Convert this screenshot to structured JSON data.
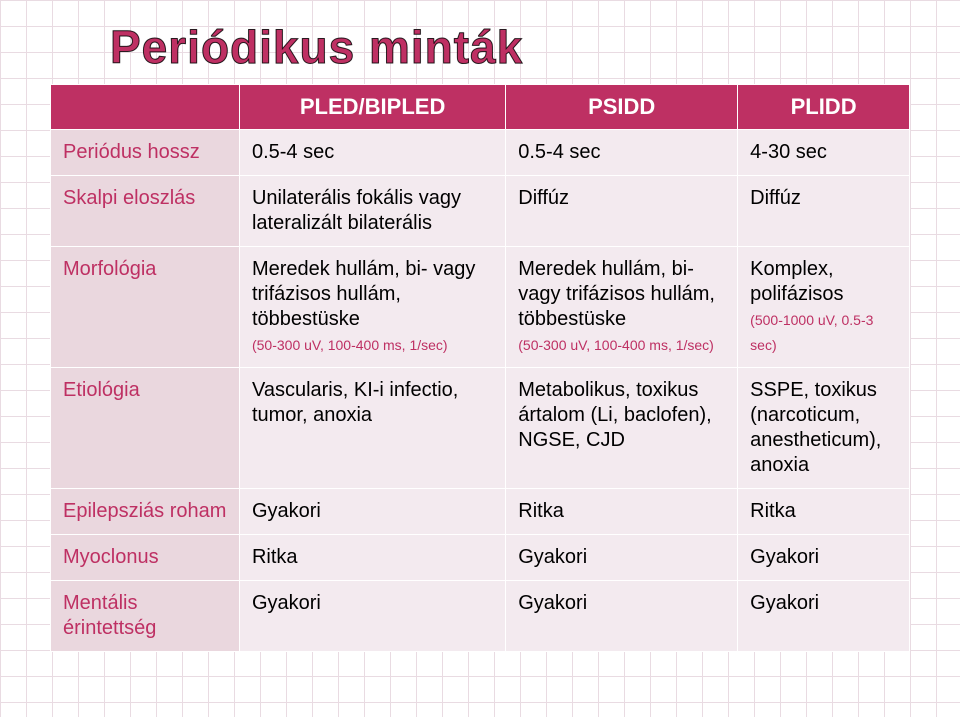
{
  "title": "Periódikus minták",
  "colors": {
    "accent": "#be3063",
    "rowhead_bg": "#ead7de",
    "cell_bg": "#f3eaef",
    "grid": "#e9dbe2",
    "white": "#ffffff"
  },
  "table": {
    "columns": [
      "",
      "PLED/BIPLED",
      "PSIDD",
      "PLIDD"
    ],
    "rows": [
      {
        "head": "Periódus hossz",
        "c1": "0.5-4 sec",
        "c2": "0.5-4 sec",
        "c3": "4-30 sec"
      },
      {
        "head": "Skalpi eloszlás",
        "c1": "Unilaterális fokális vagy lateralizált bilaterális",
        "c2": "Diffúz",
        "c3": "Diffúz"
      },
      {
        "head": "Morfológia",
        "c1": "Meredek hullám, bi- vagy trifázisos hullám, többestüske",
        "c1_sub": "(50-300 uV, 100-400 ms, 1/sec)",
        "c2": "Meredek hullám, bi- vagy trifázisos hullám, többestüske",
        "c2_sub": "(50-300 uV, 100-400 ms, 1/sec)",
        "c3": "Komplex, polifázisos",
        "c3_sub": "(500-1000 uV, 0.5-3 sec)"
      },
      {
        "head": "Etiológia",
        "c1": "Vascularis, KI-i infectio, tumor, anoxia",
        "c2": "Metabolikus, toxikus ártalom (Li, baclofen), NGSE, CJD",
        "c3": "SSPE, toxikus (narcoticum, anestheticum), anoxia"
      },
      {
        "head": "Epilepsziás roham",
        "c1": "Gyakori",
        "c2": "Ritka",
        "c3": "Ritka"
      },
      {
        "head": "Myoclonus",
        "c1": "Ritka",
        "c2": "Gyakori",
        "c3": "Gyakori"
      },
      {
        "head": "Mentális érintettség",
        "c1": "Gyakori",
        "c2": "Gyakori",
        "c3": "Gyakori"
      }
    ]
  }
}
